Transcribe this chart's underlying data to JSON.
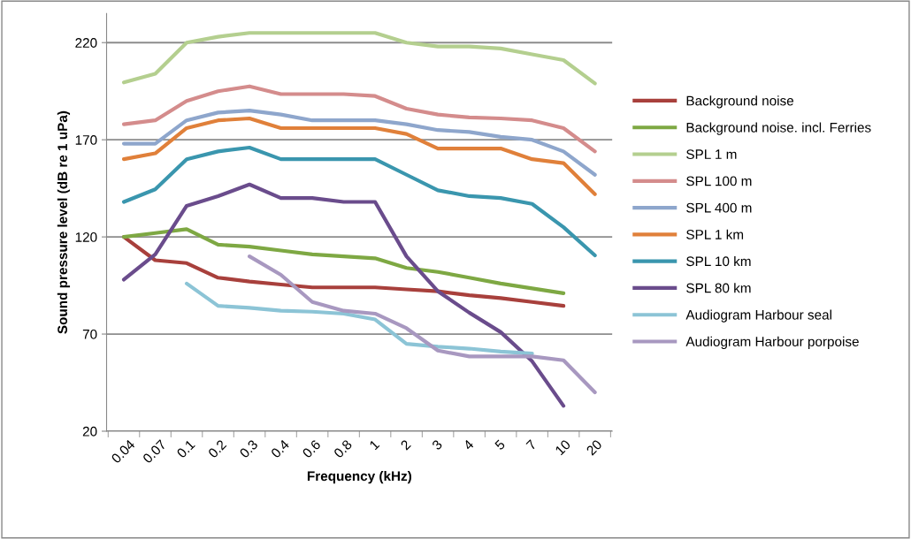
{
  "chart_data": {
    "type": "line",
    "xlabel": "Frequency (kHz)",
    "ylabel": "Sound pressure level (dB re 1 uPa)",
    "categories": [
      "0.04",
      "0.07",
      "0.1",
      "0.2",
      "0.3",
      "0.4",
      "0.6",
      "0.8",
      "1",
      "2",
      "3",
      "4",
      "5",
      "7",
      "10",
      "20"
    ],
    "ylim": [
      20,
      235
    ],
    "yticks": [
      20,
      70,
      120,
      170,
      220
    ],
    "grid": "y",
    "legend": "right",
    "marker": "none",
    "line_style": "solid",
    "series": [
      {
        "name": "Background noise",
        "color": "#a8403c",
        "values": [
          120,
          108,
          106.5,
          99,
          97,
          95.5,
          94,
          94,
          94,
          93,
          92,
          90,
          88.5,
          86.5,
          84.5,
          null
        ]
      },
      {
        "name": "Background noise. incl. Ferries",
        "color": "#7ea843",
        "values": [
          120,
          122,
          124,
          116,
          115,
          113,
          111,
          110,
          109,
          104,
          102,
          99,
          96,
          93.5,
          91,
          null
        ]
      },
      {
        "name": "SPL 1 m",
        "color": "#b4cf8f",
        "values": [
          199.5,
          204,
          220,
          223,
          225,
          225,
          225,
          225,
          225,
          220,
          218,
          218,
          217,
          214,
          211,
          199
        ]
      },
      {
        "name": "SPL 100 m",
        "color": "#d48c8c",
        "values": [
          178,
          180,
          190,
          195,
          197.5,
          193.5,
          193.5,
          193.5,
          192.5,
          186,
          183,
          181.5,
          181,
          180,
          176,
          164
        ]
      },
      {
        "name": "SPL 400 m",
        "color": "#8ea6cc",
        "values": [
          168,
          168,
          180,
          184,
          185,
          183,
          180,
          180,
          180,
          178,
          175,
          174,
          171.5,
          170,
          164,
          152
        ]
      },
      {
        "name": "SPL 1 km",
        "color": "#e0803a",
        "values": [
          160,
          163,
          176,
          180,
          181,
          176,
          176,
          176,
          176,
          173,
          165.5,
          165.5,
          165.5,
          160,
          158,
          142
        ]
      },
      {
        "name": "SPL 10 km",
        "color": "#3a96ae",
        "values": [
          138,
          144.5,
          160,
          164,
          166,
          160,
          160,
          160,
          160,
          152,
          144,
          141,
          140,
          137,
          125,
          110.5
        ]
      },
      {
        "name": "SPL 80 km",
        "color": "#6a4c8c",
        "values": [
          98,
          111,
          136,
          141,
          147,
          140,
          140,
          138,
          138,
          110,
          92,
          81,
          71,
          56,
          33,
          null
        ]
      },
      {
        "name": "Audiogram Harbour seal",
        "color": "#8cc4d6",
        "values": [
          null,
          null,
          96,
          84.5,
          83.5,
          82,
          81.5,
          80.5,
          77.5,
          65,
          63.5,
          62.5,
          61,
          60,
          null,
          null
        ]
      },
      {
        "name": "Audiogram Harbour porpoise",
        "color": "#a898c0",
        "values": [
          null,
          null,
          null,
          null,
          110,
          100.5,
          86.5,
          82,
          80.5,
          73,
          61.5,
          58.5,
          58.5,
          58.5,
          56.5,
          40
        ]
      }
    ]
  }
}
